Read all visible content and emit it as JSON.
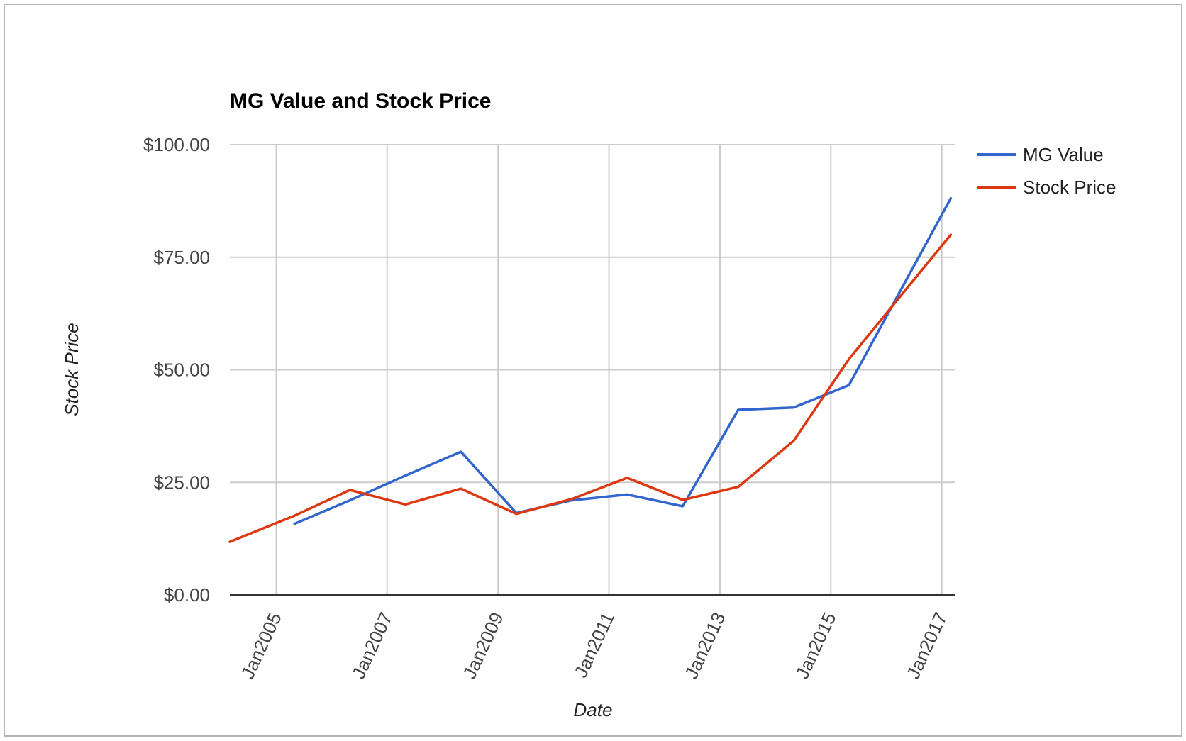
{
  "chart_data": {
    "type": "line",
    "title": "MG Value and Stock Price",
    "xlabel": "Date",
    "ylabel": "Stock Price",
    "ylim": [
      0,
      100
    ],
    "yticks": [
      0,
      25,
      50,
      75,
      100
    ],
    "ytick_labels": [
      "$0.00",
      "$25.00",
      "$50.00",
      "$75.00",
      "$100.00"
    ],
    "xlim": [
      "2004-03-01",
      "2017-04-01"
    ],
    "xticks": [
      "2005-01-01",
      "2007-01-01",
      "2009-01-01",
      "2011-01-01",
      "2013-01-01",
      "2015-01-01",
      "2017-01-01"
    ],
    "xtick_labels": [
      "Jan2005",
      "Jan2007",
      "Jan2009",
      "Jan2011",
      "Jan2013",
      "Jan2015",
      "Jan2017"
    ],
    "grid": true,
    "legend_position": "right",
    "series": [
      {
        "name": "MG Value",
        "color": "#3366cc",
        "points": [
          {
            "x": "2005-05-01",
            "y": 15.8
          },
          {
            "x": "2006-05-01",
            "y": 21.0
          },
          {
            "x": "2007-05-01",
            "y": 26.5
          },
          {
            "x": "2008-05-01",
            "y": 31.8
          },
          {
            "x": "2009-05-01",
            "y": 18.2
          },
          {
            "x": "2010-05-01",
            "y": 21.0
          },
          {
            "x": "2011-05-01",
            "y": 22.3
          },
          {
            "x": "2012-05-01",
            "y": 19.7
          },
          {
            "x": "2013-05-01",
            "y": 41.1
          },
          {
            "x": "2014-05-01",
            "y": 41.6
          },
          {
            "x": "2015-05-01",
            "y": 46.6
          },
          {
            "x": "2017-03-01",
            "y": 88.1
          }
        ]
      },
      {
        "name": "Stock Price",
        "color": "#dc3912",
        "points": [
          {
            "x": "2004-03-01",
            "y": 11.8
          },
          {
            "x": "2005-05-01",
            "y": 17.6
          },
          {
            "x": "2006-05-01",
            "y": 23.3
          },
          {
            "x": "2007-05-01",
            "y": 20.1
          },
          {
            "x": "2008-05-01",
            "y": 23.6
          },
          {
            "x": "2009-05-01",
            "y": 18.0
          },
          {
            "x": "2010-05-01",
            "y": 21.3
          },
          {
            "x": "2011-05-01",
            "y": 26.0
          },
          {
            "x": "2012-05-01",
            "y": 21.1
          },
          {
            "x": "2013-05-01",
            "y": 24.0
          },
          {
            "x": "2014-05-01",
            "y": 34.2
          },
          {
            "x": "2015-05-01",
            "y": 52.4
          },
          {
            "x": "2017-03-01",
            "y": 80.0
          }
        ]
      }
    ]
  }
}
